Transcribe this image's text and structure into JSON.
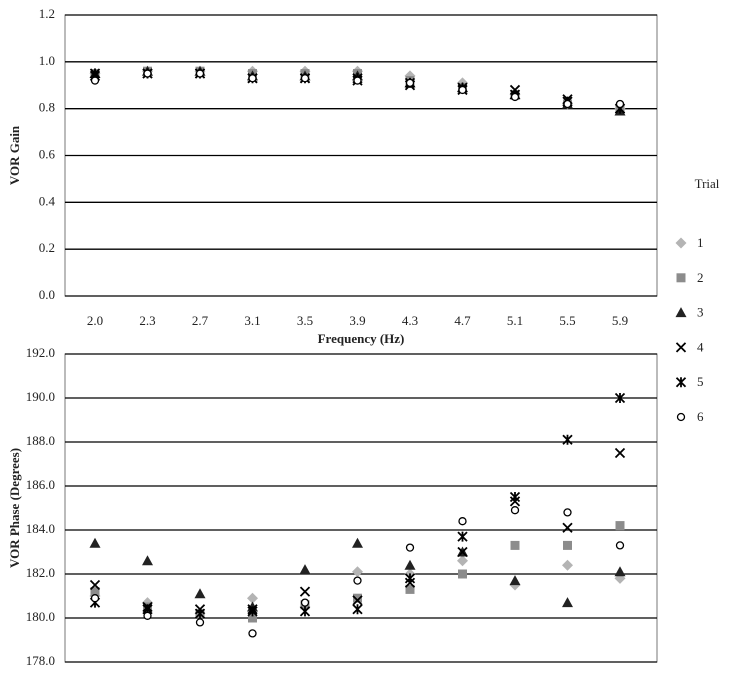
{
  "chart_data": [
    {
      "type": "scatter",
      "ylabel": "VOR Gain",
      "xlabel": "Frequency (Hz)",
      "categories": [
        "2.0",
        "2.3",
        "2.7",
        "3.1",
        "3.5",
        "3.9",
        "4.3",
        "4.7",
        "5.1",
        "5.5",
        "5.9"
      ],
      "ylim": [
        0,
        1.2
      ],
      "yticks": [
        {
          "value": 0,
          "label": "0.0"
        },
        {
          "value": 0.2,
          "label": "0.2"
        },
        {
          "value": 0.4,
          "label": "0.4"
        },
        {
          "value": 0.6,
          "label": "0.6"
        },
        {
          "value": 0.8,
          "label": "0.8"
        },
        {
          "value": 1,
          "label": "1.0"
        },
        {
          "value": 1.2,
          "label": "1.2"
        }
      ],
      "grid": true,
      "legend": "right",
      "legend_title": "Trial",
      "series": [
        {
          "name": "1",
          "marker": "diamond",
          "color": "#b4b4b4",
          "values": [
            0.95,
            0.96,
            0.96,
            0.96,
            0.96,
            0.96,
            0.94,
            0.91,
            0.86,
            0.82,
            0.8
          ]
        },
        {
          "name": "2",
          "marker": "square",
          "color": "#8c8c8c",
          "values": [
            0.95,
            0.96,
            0.96,
            0.95,
            0.95,
            0.95,
            0.92,
            0.89,
            0.86,
            0.82,
            0.8
          ]
        },
        {
          "name": "3",
          "marker": "triangle",
          "color": "#222222",
          "values": [
            0.95,
            0.96,
            0.96,
            0.94,
            0.94,
            0.94,
            0.91,
            0.89,
            0.86,
            0.82,
            0.79
          ]
        },
        {
          "name": "4",
          "marker": "x",
          "color": "#000000",
          "values": [
            0.94,
            0.95,
            0.95,
            0.93,
            0.93,
            0.92,
            0.9,
            0.88,
            0.88,
            0.84,
            0.8
          ]
        },
        {
          "name": "5",
          "marker": "star",
          "color": "#000000",
          "values": [
            0.95,
            0.95,
            0.95,
            0.93,
            0.93,
            0.93,
            0.91,
            0.89,
            0.86,
            0.83,
            0.8
          ]
        },
        {
          "name": "6",
          "marker": "circle",
          "color": "#000000",
          "values": [
            0.92,
            0.95,
            0.95,
            0.93,
            0.93,
            0.92,
            0.91,
            0.88,
            0.85,
            0.82,
            0.82
          ]
        }
      ]
    },
    {
      "type": "scatter",
      "ylabel": "VOR Phase  (Degrees)",
      "ylim": [
        178,
        192
      ],
      "yticks": [
        {
          "value": 178,
          "label": "178.0"
        },
        {
          "value": 180,
          "label": "180.0"
        },
        {
          "value": 182,
          "label": "182.0"
        },
        {
          "value": 184,
          "label": "184.0"
        },
        {
          "value": 186,
          "label": "186.0"
        },
        {
          "value": 188,
          "label": "188.0"
        },
        {
          "value": 190,
          "label": "190.0"
        },
        {
          "value": 192,
          "label": "192.0"
        }
      ],
      "grid": true,
      "series": [
        {
          "marker": "diamond",
          "color": "#b4b4b4",
          "values": [
            181.0,
            180.7,
            180.2,
            180.9,
            180.5,
            182.1,
            182.0,
            182.6,
            181.5,
            182.4,
            181.8
          ]
        },
        {
          "marker": "square",
          "color": "#8c8c8c",
          "values": [
            181.2,
            180.5,
            180.2,
            180.0,
            180.6,
            180.9,
            181.3,
            182.0,
            183.3,
            183.3,
            184.2
          ]
        },
        {
          "marker": "triangle",
          "color": "#222222",
          "values": [
            183.4,
            182.6,
            181.1,
            180.5,
            182.2,
            183.4,
            182.4,
            183.0,
            181.7,
            180.7,
            182.1
          ]
        },
        {
          "marker": "x",
          "color": "#000000",
          "values": [
            181.5,
            180.5,
            180.4,
            180.4,
            181.2,
            180.8,
            181.6,
            183.0,
            185.3,
            184.1,
            187.5
          ]
        },
        {
          "marker": "star",
          "color": "#000000",
          "values": [
            180.7,
            180.4,
            180.2,
            180.3,
            180.3,
            180.4,
            181.8,
            183.7,
            185.5,
            188.1,
            190.0
          ]
        },
        {
          "marker": "circle",
          "color": "#000000",
          "values": [
            180.9,
            180.1,
            179.8,
            179.3,
            180.7,
            181.7,
            183.2,
            184.4,
            184.9,
            184.8,
            183.3
          ]
        }
      ]
    }
  ]
}
